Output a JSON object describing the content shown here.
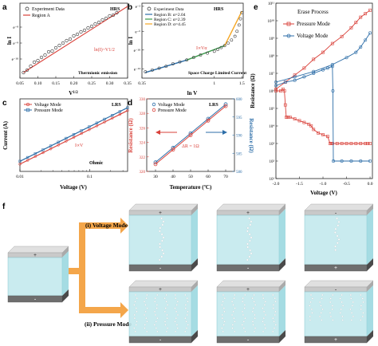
{
  "colors": {
    "red": "#d9413a",
    "blue": "#2d6ea8",
    "black": "#222222",
    "orange": "#f5a623",
    "green": "#3a9a4a",
    "lightblue": "#5a8fc8",
    "cyan": "#bfe8ec",
    "cyan_dark": "#8fd3dc",
    "electrode_top": "#c9c9c9",
    "electrode_bottom": "#6e6e6e",
    "arrow": "#f4a64a"
  },
  "chart_data": [
    {
      "id": "a",
      "panel_label": "a",
      "type": "scatter",
      "xscale": "linear",
      "yscale": "log",
      "xlim": [
        0.05,
        0.35
      ],
      "xticks": [
        0.05,
        0.1,
        0.15,
        0.2,
        0.25,
        0.3,
        0.35
      ],
      "xticklabels": [
        "0.05",
        "0.10",
        "0.15",
        "0.20",
        "0.25",
        "0.30",
        "0.35"
      ],
      "yticklabels": [
        "e⁻⁸",
        "e⁻⁹",
        "e⁻¹⁰"
      ],
      "xlabel": "V1/2",
      "ylabel": "ln I",
      "tag": "HRS",
      "legend": [
        "Experiment Data",
        "Region A"
      ],
      "equation": "ln(I)~V1/2",
      "note": "Thermionic emission",
      "series": [
        {
          "name": "Experiment Data",
          "kind": "points",
          "x": [
            0.06,
            0.07,
            0.08,
            0.09,
            0.1,
            0.11,
            0.12,
            0.13,
            0.14,
            0.15,
            0.16,
            0.17,
            0.18,
            0.19,
            0.2,
            0.21,
            0.22,
            0.23,
            0.24,
            0.25,
            0.26,
            0.27,
            0.28,
            0.29,
            0.3,
            0.31,
            0.32
          ],
          "y": [
            -10.85,
            -10.7,
            -10.45,
            -10.2,
            -10.1,
            -9.9,
            -9.75,
            -9.55,
            -9.5,
            -9.3,
            -9.15,
            -9.0,
            -8.85,
            -8.75,
            -8.55,
            -8.45,
            -8.3,
            -8.2,
            -8.05,
            -7.95,
            -7.8,
            -7.7,
            -7.55,
            -7.45,
            -7.3,
            -7.25,
            -7.1
          ]
        },
        {
          "name": "Region A",
          "kind": "line",
          "x": [
            0.06,
            0.35
          ],
          "y": [
            -10.85,
            -6.7
          ]
        }
      ]
    },
    {
      "id": "b",
      "panel_label": "b",
      "type": "scatter",
      "xscale": "log",
      "yscale": "log",
      "xticklabels": [
        "0.35",
        "1",
        "1.5"
      ],
      "yticklabels": [
        "e⁻²",
        "e⁻⁶",
        "e⁻¹⁰",
        "e⁻¹⁴"
      ],
      "xlabel": "ln V",
      "ylabel": "ln I",
      "tag": "HRS",
      "legend": [
        "Experiment Data",
        "Region B: α=2.04",
        "Region C: α=2.39",
        "Region D: α=4.45"
      ],
      "equation": "I∝Vα",
      "note": "Space Charge Limited Current",
      "series": [
        {
          "name": "Experiment Data",
          "kind": "points",
          "x": [
            -1.0,
            -0.9,
            -0.8,
            -0.7,
            -0.6,
            -0.5,
            -0.4,
            -0.3,
            -0.2,
            -0.1,
            0.0,
            0.05,
            0.1,
            0.15,
            0.2,
            0.25,
            0.3,
            0.33,
            0.36,
            0.38,
            0.4
          ],
          "y": [
            -14.5,
            -14.2,
            -13.9,
            -13.6,
            -13.2,
            -12.9,
            -12.6,
            -12.2,
            -11.8,
            -11.5,
            -11.2,
            -10.9,
            -10.6,
            -10.3,
            -9.9,
            -9.4,
            -8.8,
            -8.0,
            -7.0,
            -6.0,
            -5.0
          ]
        },
        {
          "name": "Region B: α=2.04",
          "kind": "line",
          "color": "#2d6ea8",
          "x": [
            -1.0,
            -0.4
          ],
          "y": [
            -14.6,
            -12.6
          ]
        },
        {
          "name": "Region C: α=2.39",
          "kind": "line",
          "color": "#3a9a4a",
          "x": [
            -0.4,
            0.15
          ],
          "y": [
            -12.6,
            -10.3
          ]
        },
        {
          "name": "Region D: α=4.45",
          "kind": "line",
          "color": "#f5a623",
          "x": [
            0.15,
            0.4
          ],
          "y": [
            -10.3,
            -4.8
          ]
        }
      ]
    },
    {
      "id": "c",
      "panel_label": "c",
      "type": "line",
      "xscale": "log",
      "yscale": "log",
      "xlim": [
        0.01,
        0.35
      ],
      "xticklabels": [
        "0.01",
        "0.1"
      ],
      "xlabel": "Voltage (V)",
      "ylabel": "Current (A)",
      "tag": "LRS",
      "legend": [
        "Voltage Mode",
        "Pressure Mode"
      ],
      "equation": "I∝V",
      "note": "Ohmic",
      "series": [
        {
          "name": "Voltage Mode",
          "color": "#d9413a",
          "x": [
            0.01,
            0.35
          ],
          "y": [
            1e-05,
            0.0003
          ]
        },
        {
          "name": "Pressure Mode",
          "color": "#2d6ea8",
          "x": [
            0.01,
            0.35
          ],
          "y": [
            1.2e-05,
            0.00036
          ]
        }
      ]
    },
    {
      "id": "d",
      "panel_label": "d",
      "type": "line",
      "xlim": [
        25,
        75
      ],
      "xticks": [
        30,
        40,
        50,
        60,
        70
      ],
      "ylim_left": [
        320,
        330
      ],
      "yticks_left": [
        320,
        322,
        324,
        326,
        328,
        330
      ],
      "ylim_right": [
        580,
        600
      ],
      "yticks_right": [
        580,
        585,
        590,
        595,
        600
      ],
      "xlabel": "Temperature (ºC)",
      "ylabel_left": "Resistance (Ω)",
      "ylabel_right": "Resistance (Ω)",
      "tag": "LRS",
      "legend": [
        "Voltage Mode",
        "Pressure Mode"
      ],
      "annotation": "ΔR = 1Ω",
      "series": [
        {
          "name": "Voltage Mode",
          "axis": "right",
          "color": "#2d6ea8",
          "x": [
            30,
            40,
            50,
            60,
            70
          ],
          "y": [
            582.5,
            586.5,
            590.5,
            594.5,
            598.5
          ]
        },
        {
          "name": "Pressure Mode",
          "axis": "left",
          "color": "#d9413a",
          "x": [
            30,
            40,
            50,
            60,
            70
          ],
          "y": [
            321.0,
            323.0,
            325.0,
            327.0,
            329.0
          ]
        }
      ]
    },
    {
      "id": "e",
      "panel_label": "e",
      "type": "line",
      "xlim": [
        -2.0,
        0.0
      ],
      "xticks": [
        -2.0,
        -1.5,
        -1.0,
        -0.5,
        0.0
      ],
      "xticklabels": [
        "-2.0",
        "-1.5",
        "-1.0",
        "-0.5",
        "0.0"
      ],
      "yscale": "log",
      "ylim_exp": [
        1,
        11
      ],
      "yticklabels": [
        "10¹",
        "10²",
        "10³",
        "10⁴",
        "10⁵",
        "10⁶",
        "10⁷",
        "10⁸",
        "10⁹",
        "10¹⁰",
        "10¹¹"
      ],
      "xlabel": "Voltage (V)",
      "ylabel": "Resistance (Ω)",
      "title": "Erase Process",
      "legend": [
        "Pressure Mode",
        "Voltage Mode"
      ],
      "series": [
        {
          "name": "Pressure Mode",
          "color": "#d9413a",
          "x": [
            -2.0,
            -1.9,
            -1.85,
            -1.82,
            -1.8,
            -1.78,
            -1.75,
            -1.7,
            -1.6,
            -1.5,
            -1.4,
            -1.3,
            -1.25,
            -1.2,
            -1.1,
            -1.0,
            -0.9,
            -0.85,
            -0.82,
            -0.8,
            -0.7,
            -0.6,
            -0.5,
            -0.4,
            -0.3,
            -0.2,
            -0.1,
            -0.05,
            0.0
          ],
          "y": [
            6.0,
            6.0,
            6.1,
            6.0,
            5.2,
            4.5,
            4.5,
            4.5,
            4.4,
            4.3,
            4.2,
            4.1,
            4.0,
            3.8,
            3.6,
            3.5,
            3.4,
            3.0,
            3.0,
            3.0,
            3.0,
            3.0,
            3.0,
            3.0,
            3.0,
            3.0,
            3.0,
            3.0,
            3.0
          ]
        },
        {
          "name": "Pressure Mode (return)",
          "color": "#d9413a",
          "x": [
            -2.0,
            -1.8,
            -1.6,
            -1.4,
            -1.2,
            -1.0,
            -0.8,
            -0.6,
            -0.4,
            -0.3,
            -0.2,
            -0.1,
            0.0
          ],
          "y": [
            6.1,
            6.5,
            6.9,
            7.3,
            7.8,
            8.2,
            8.7,
            9.1,
            9.6,
            9.9,
            10.2,
            10.4,
            10.6
          ]
        },
        {
          "name": "Voltage Mode",
          "color": "#2d6ea8",
          "x": [
            -2.0,
            -1.8,
            -1.6,
            -1.4,
            -1.2,
            -1.0,
            -0.9,
            -0.8,
            -0.79,
            -0.78,
            -0.6,
            -0.4,
            -0.2,
            0.0
          ],
          "y": [
            6.3,
            6.5,
            6.6,
            6.8,
            7.0,
            7.2,
            7.3,
            7.4,
            6.0,
            2.0,
            2.0,
            2.0,
            2.0,
            2.0
          ]
        },
        {
          "name": "Voltage Mode (return)",
          "color": "#2d6ea8",
          "x": [
            -2.0,
            -1.6,
            -1.2,
            -0.8,
            -0.5,
            -0.3,
            -0.2,
            -0.1,
            0.0
          ],
          "y": [
            6.5,
            6.8,
            7.1,
            7.5,
            7.9,
            8.2,
            8.5,
            8.9,
            9.3
          ]
        }
      ]
    }
  ],
  "panel_f": {
    "panel_label": "f",
    "mode_voltage": "(i) Voltage Mode",
    "mode_pressure": "(ii) Pressure Mode",
    "init_top": "+",
    "init_bottom": "-",
    "voltage_row": [
      {
        "top": "+",
        "bottom": "-"
      },
      {
        "top": "+",
        "bottom": "-"
      },
      {
        "top": "-",
        "bottom": "+"
      }
    ],
    "pressure_row": [
      {
        "top": "+",
        "bottom": "-"
      },
      {
        "top": "+",
        "bottom": "-"
      },
      {
        "top": "-",
        "bottom": "+"
      }
    ]
  }
}
